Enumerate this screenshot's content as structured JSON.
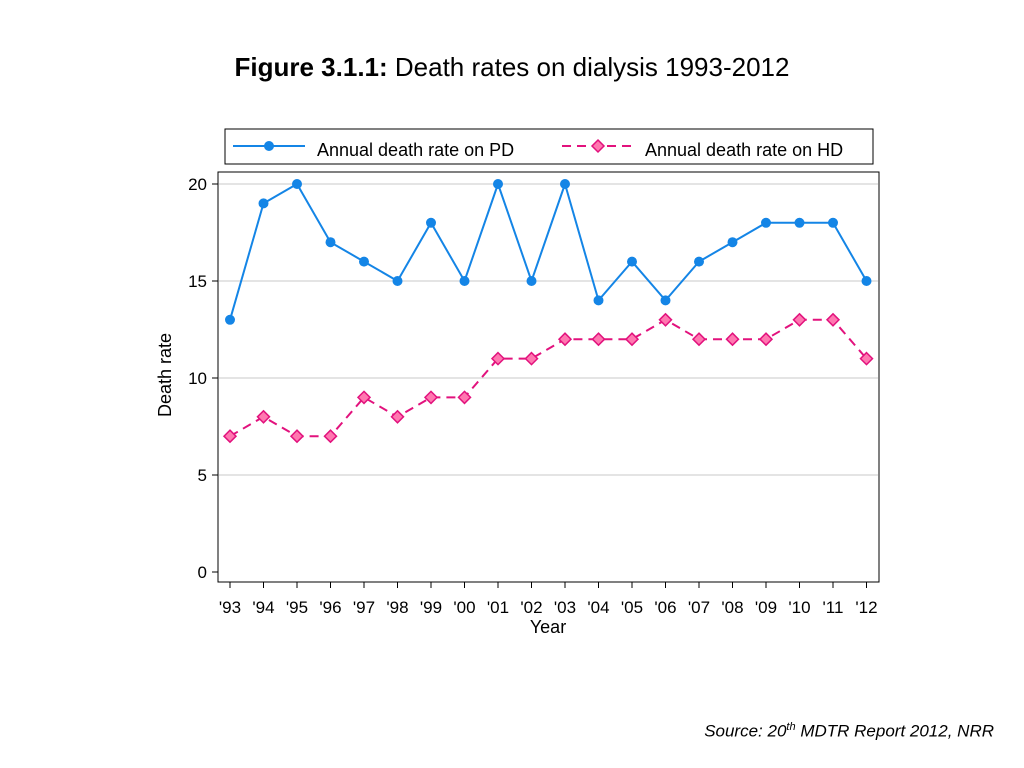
{
  "figure": {
    "label": "Figure 3.1.1:",
    "title": "Death rates on dialysis 1993-2012"
  },
  "source": {
    "prefix": "Source: 20",
    "superscript": "th",
    "suffix": " MDTR Report 2012, NRR"
  },
  "chart_data": {
    "type": "line",
    "xlabel": "Year",
    "ylabel": "Death rate",
    "ylim": [
      0,
      20
    ],
    "yticks": [
      0,
      5,
      10,
      15,
      20
    ],
    "grid": true,
    "legend_position": "top",
    "categories": [
      "'93",
      "'94",
      "'95",
      "'96",
      "'97",
      "'98",
      "'99",
      "'00",
      "'01",
      "'02",
      "'03",
      "'04",
      "'05",
      "'06",
      "'07",
      "'08",
      "'09",
      "'10",
      "'11",
      "'12"
    ],
    "series": [
      {
        "name": "Annual death rate on PD",
        "color": "#1485e6",
        "marker": "circle",
        "line": "solid",
        "values": [
          13,
          19,
          20,
          17,
          16,
          15,
          18,
          15,
          20,
          15,
          20,
          14,
          16,
          14,
          16,
          17,
          18,
          18,
          18,
          15
        ]
      },
      {
        "name": "Annual death rate on HD",
        "color": "#e2127d",
        "marker_fill": "#ff77b0",
        "marker": "diamond",
        "line": "dashed",
        "values": [
          7,
          8,
          7,
          7,
          9,
          8,
          9,
          9,
          11,
          11,
          12,
          12,
          12,
          13,
          12,
          12,
          12,
          13,
          13,
          11
        ]
      }
    ]
  }
}
